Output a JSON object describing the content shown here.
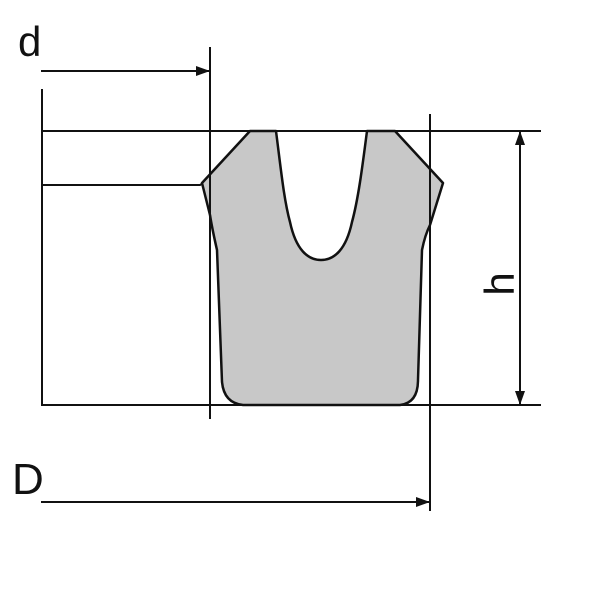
{
  "labels": {
    "inner_diameter": "d",
    "outer_diameter": "D",
    "height": "h"
  },
  "colors": {
    "seal_fill": "#c8c8c8",
    "line": "#111111",
    "background": "#ffffff"
  }
}
